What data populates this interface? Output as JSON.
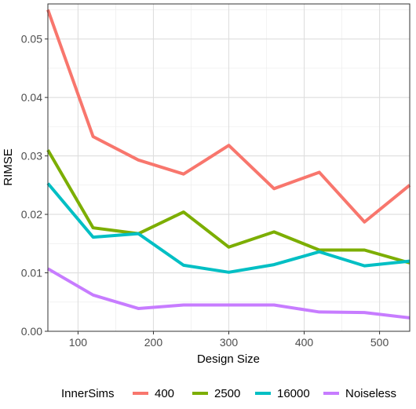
{
  "chart_data": {
    "type": "line",
    "title": "",
    "xlabel": "Design Size",
    "ylabel": "RIMSE",
    "xlim": [
      60,
      540
    ],
    "ylim": [
      0,
      0.056
    ],
    "x_ticks": [
      100,
      200,
      300,
      400,
      500
    ],
    "y_ticks": [
      0.0,
      0.01,
      0.02,
      0.03,
      0.04,
      0.05
    ],
    "x_tick_labels": [
      "100",
      "200",
      "300",
      "400",
      "500"
    ],
    "y_tick_labels": [
      "0.00",
      "0.01",
      "0.02",
      "0.03",
      "0.04",
      "0.05"
    ],
    "grid": true,
    "legend_title": "InnerSims",
    "legend_position": "bottom",
    "x": [
      60,
      120,
      180,
      240,
      300,
      360,
      420,
      480,
      540
    ],
    "series": [
      {
        "name": "400",
        "color": "#f8766d",
        "values": [
          0.055,
          0.0333,
          0.0293,
          0.0269,
          0.0318,
          0.0244,
          0.0272,
          0.0187,
          0.025
        ]
      },
      {
        "name": "2500",
        "color": "#7cae00",
        "values": [
          0.031,
          0.0177,
          0.0167,
          0.0204,
          0.0144,
          0.017,
          0.0139,
          0.0139,
          0.0117
        ]
      },
      {
        "name": "16000",
        "color": "#00bfc4",
        "values": [
          0.0253,
          0.0161,
          0.0167,
          0.0113,
          0.0101,
          0.0114,
          0.0136,
          0.0112,
          0.012
        ]
      },
      {
        "name": "Noiseless",
        "color": "#c77cff",
        "values": [
          0.0107,
          0.0062,
          0.0039,
          0.0045,
          0.0045,
          0.0045,
          0.0033,
          0.0032,
          0.0023
        ]
      }
    ]
  }
}
